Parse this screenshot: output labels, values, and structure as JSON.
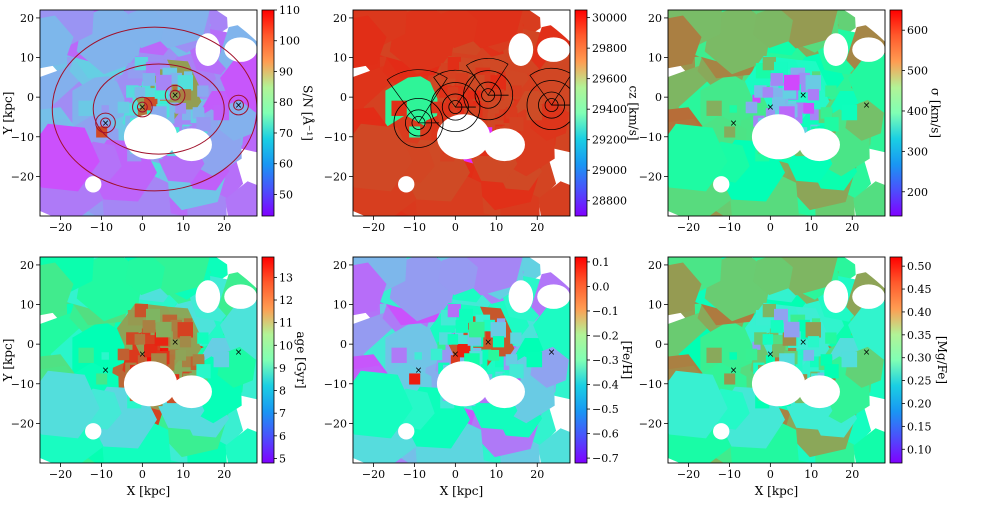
{
  "chart_data": {
    "type": "heatmap",
    "description_note": "Voronoi-binned maps of a galaxy group; cells rendered approximately",
    "x_axis": {
      "label": "X [kpc]",
      "range": [
        -25,
        28
      ],
      "ticks": [
        -20,
        -10,
        0,
        10,
        20
      ]
    },
    "y_axis": {
      "label": "Y [kpc]",
      "range": [
        -30,
        22
      ],
      "ticks": [
        -20,
        -10,
        0,
        10,
        20
      ]
    },
    "galaxies": [
      {
        "x": -9,
        "y": -6.5
      },
      {
        "x": 0,
        "y": -2.5
      },
      {
        "x": 8,
        "y": 0.5
      },
      {
        "x": 23.5,
        "y": -2
      }
    ],
    "panels": [
      {
        "id": "sn",
        "colorbar_label": "S/N [Å⁻¹]",
        "vmin": 43,
        "vmax": 110,
        "ticks": [
          50,
          60,
          70,
          80,
          90,
          100,
          110
        ],
        "background_value": 55,
        "colormap": "rainbow",
        "show_xlabel": false,
        "show_ylabel": true,
        "show_contours": true
      },
      {
        "id": "cz",
        "colorbar_label": "cz [km/s]",
        "vmin": 28700,
        "vmax": 30050,
        "ticks": [
          28800,
          29000,
          29200,
          29400,
          29600,
          29800,
          30000
        ],
        "background_value": 29950,
        "colormap": "rainbow",
        "show_xlabel": false,
        "show_ylabel": false,
        "show_wedges": true
      },
      {
        "id": "sigma",
        "colorbar_label": "σ [km/s]",
        "vmin": 140,
        "vmax": 650,
        "ticks": [
          200,
          300,
          400,
          500,
          600
        ],
        "background_value": 440,
        "colormap": "rainbow",
        "show_xlabel": false,
        "show_ylabel": false
      },
      {
        "id": "age",
        "colorbar_label": "age [Gyr]",
        "vmin": 4.8,
        "vmax": 13.9,
        "ticks": [
          5,
          6,
          7,
          8,
          9,
          10,
          11,
          12,
          13
        ],
        "background_value": 10.5,
        "colormap": "rainbow",
        "show_xlabel": true,
        "show_ylabel": true
      },
      {
        "id": "feh",
        "colorbar_label": "[Fe/H]",
        "vmin": -0.72,
        "vmax": 0.12,
        "ticks": [
          0.1,
          0.0,
          -0.1,
          -0.2,
          -0.3,
          -0.4,
          -0.5,
          -0.6,
          -0.7
        ],
        "tick_labels": [
          "0.1",
          "0.0",
          "−0.1",
          "−0.2",
          "−0.3",
          "−0.4",
          "−0.5",
          "−0.6",
          "−0.7"
        ],
        "background_value": -0.35,
        "colormap": "rainbow",
        "show_xlabel": true,
        "show_ylabel": false
      },
      {
        "id": "mgfe",
        "colorbar_label": "[Mg/Fe]",
        "vmin": 0.07,
        "vmax": 0.52,
        "ticks": [
          0.1,
          0.15,
          0.2,
          0.25,
          0.3,
          0.35,
          0.4,
          0.45,
          0.5
        ],
        "tick_labels": [
          "0.10",
          "0.15",
          "0.20",
          "0.25",
          "0.30",
          "0.35",
          "0.40",
          "0.45",
          "0.50"
        ],
        "background_value": 0.33,
        "colormap": "rainbow",
        "show_xlabel": true,
        "show_ylabel": false
      }
    ]
  }
}
